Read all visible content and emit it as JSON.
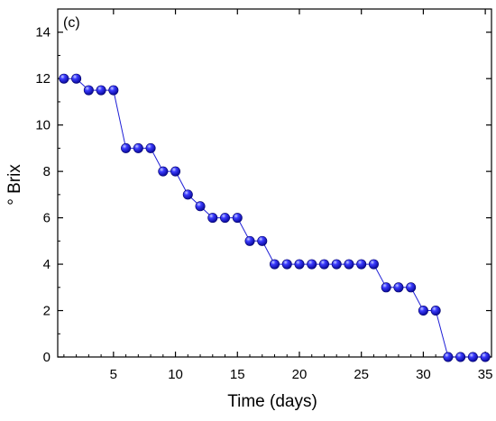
{
  "chart_data": {
    "type": "line",
    "panel_label": "(c)",
    "xlabel": "Time (days)",
    "ylabel": "° Brix",
    "xlim": [
      0.5,
      35.5
    ],
    "ylim": [
      0,
      15
    ],
    "x_ticks": [
      5,
      10,
      15,
      20,
      25,
      30,
      35
    ],
    "y_ticks": [
      0,
      2,
      4,
      6,
      8,
      10,
      12,
      14
    ],
    "grid": false,
    "legend": "none",
    "marker": "sphere",
    "series": [
      {
        "color": "#1f1fd6",
        "x": [
          1,
          2,
          3,
          4,
          5,
          6,
          7,
          8,
          9,
          10,
          11,
          12,
          13,
          14,
          15,
          16,
          17,
          18,
          19,
          20,
          21,
          22,
          23,
          24,
          25,
          26,
          27,
          28,
          29,
          30,
          31,
          32,
          33,
          34,
          35
        ],
        "y": [
          12,
          12,
          11.5,
          11.5,
          11.5,
          9,
          9,
          9,
          8,
          8,
          7,
          6.5,
          6,
          6,
          6,
          5,
          5,
          4,
          4,
          4,
          4,
          4,
          4,
          4,
          4,
          4,
          3,
          3,
          3,
          2,
          2,
          0,
          0,
          0,
          0
        ]
      }
    ]
  }
}
